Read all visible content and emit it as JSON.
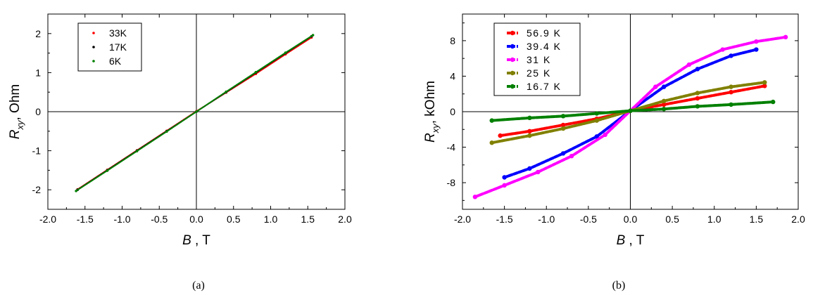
{
  "chart_data": [
    {
      "type": "scatter",
      "caption": "(a)",
      "xlabel_var": "B",
      "xlabel_unit": ", T",
      "ylabel_var": "R",
      "ylabel_sub": "xy",
      "ylabel_unit": ", Ohm",
      "xlim": [
        -2.0,
        2.0
      ],
      "ylim": [
        -2.5,
        2.5
      ],
      "xticks": [
        "-2.0",
        "-1.5",
        "-1.0",
        "-0.5",
        "0.0",
        "0.5",
        "1.0",
        "1.5",
        "2.0"
      ],
      "yticks": [
        "-2",
        "-1",
        "0",
        "1",
        "2"
      ],
      "legend_position": "top-left",
      "zero_lines": true,
      "series": [
        {
          "name": "33K",
          "color": "#ff0000",
          "x": [
            -1.6,
            -1.2,
            -0.8,
            -0.4,
            0.0,
            0.4,
            0.8,
            1.2,
            1.55
          ],
          "y": [
            -1.99,
            -1.49,
            -0.99,
            -0.49,
            0.01,
            0.49,
            0.97,
            1.47,
            1.9
          ]
        },
        {
          "name": "17K",
          "color": "#000000",
          "x": [
            -1.6,
            -1.2,
            -0.8,
            -0.4,
            0.0,
            0.4,
            0.8,
            1.2,
            1.55
          ],
          "y": [
            -2.0,
            -1.5,
            -1.0,
            -0.5,
            0.0,
            0.5,
            1.0,
            1.5,
            1.93
          ]
        },
        {
          "name": "6K",
          "color": "#008000",
          "x": [
            -1.62,
            -1.2,
            -0.8,
            -0.4,
            0.0,
            0.4,
            0.8,
            1.2,
            1.57
          ],
          "y": [
            -2.03,
            -1.51,
            -1.01,
            -0.51,
            0.0,
            0.51,
            1.01,
            1.51,
            1.96
          ]
        }
      ]
    },
    {
      "type": "scatter",
      "caption": "(b)",
      "xlabel_var": "B",
      "xlabel_unit": ", T",
      "ylabel_var": "R",
      "ylabel_sub": "xy",
      "ylabel_unit": ", kOhm",
      "xlim": [
        -2.0,
        2.0
      ],
      "ylim": [
        -11,
        11
      ],
      "xticks": [
        "-2.0",
        "-1.5",
        "-1.0",
        "-0.5",
        "0.0",
        "0.5",
        "1.0",
        "1.5",
        "2.0"
      ],
      "yticks": [
        "-8",
        "-4",
        "0",
        "4",
        "8"
      ],
      "legend_position": "top-left",
      "zero_lines": true,
      "series": [
        {
          "name": "56.9 K",
          "color": "#ff0000",
          "x": [
            -1.55,
            -1.2,
            -0.8,
            -0.4,
            0.0,
            0.4,
            0.8,
            1.2,
            1.6
          ],
          "y": [
            -2.7,
            -2.2,
            -1.5,
            -0.8,
            0.1,
            0.8,
            1.5,
            2.2,
            2.9
          ]
        },
        {
          "name": "39.4 K",
          "color": "#0000ff",
          "x": [
            -1.5,
            -1.2,
            -0.8,
            -0.4,
            0.0,
            0.4,
            0.8,
            1.2,
            1.5
          ],
          "y": [
            -7.4,
            -6.4,
            -4.7,
            -2.8,
            0.1,
            2.8,
            4.8,
            6.3,
            7.0
          ]
        },
        {
          "name": "31 K",
          "color": "#ff00ff",
          "x": [
            -1.85,
            -1.5,
            -1.1,
            -0.7,
            -0.3,
            0.0,
            0.3,
            0.7,
            1.1,
            1.5,
            1.85
          ],
          "y": [
            -9.6,
            -8.3,
            -6.8,
            -5.0,
            -2.6,
            0.1,
            2.8,
            5.3,
            7.0,
            7.9,
            8.4
          ]
        },
        {
          "name": "25 K",
          "color": "#808000",
          "x": [
            -1.65,
            -1.2,
            -0.8,
            -0.4,
            0.0,
            0.4,
            0.8,
            1.2,
            1.6
          ],
          "y": [
            -3.5,
            -2.7,
            -1.9,
            -1.0,
            0.1,
            1.2,
            2.1,
            2.8,
            3.3
          ]
        },
        {
          "name": "16.7 K",
          "color": "#008000",
          "x": [
            -1.65,
            -1.2,
            -0.8,
            -0.4,
            0.0,
            0.4,
            0.8,
            1.2,
            1.7
          ],
          "y": [
            -1.0,
            -0.7,
            -0.5,
            -0.2,
            0.1,
            0.3,
            0.6,
            0.8,
            1.1
          ]
        }
      ]
    }
  ]
}
